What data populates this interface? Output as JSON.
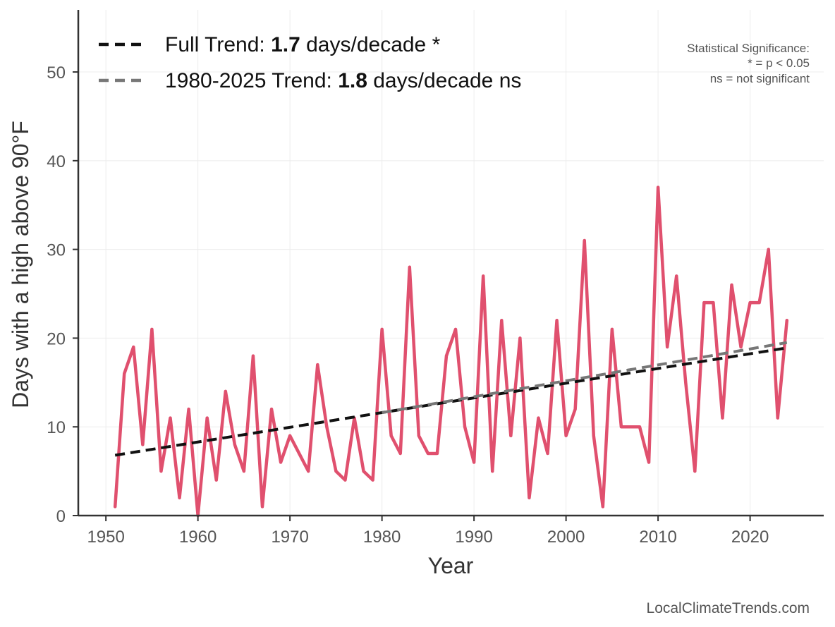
{
  "chart_data": {
    "type": "line",
    "xlabel": "Year",
    "ylabel": "Days with a high above 90°F",
    "xlim": [
      1947,
      2028
    ],
    "ylim": [
      0,
      57
    ],
    "xticks": [
      1950,
      1960,
      1970,
      1980,
      1990,
      2000,
      2010,
      2020
    ],
    "yticks": [
      0,
      10,
      20,
      30,
      40,
      50
    ],
    "grid": true,
    "legend_placement": "top-left",
    "colors": {
      "series": "#e0506e",
      "full_trend": "#111111",
      "recent_trend": "#777777"
    },
    "series": [
      {
        "x": [
          1951,
          1952,
          1953,
          1954,
          1955,
          1956,
          1957,
          1958,
          1959,
          1960,
          1961,
          1962,
          1963,
          1964,
          1965,
          1966,
          1967,
          1968,
          1969,
          1970,
          1971,
          1972,
          1973,
          1974,
          1975,
          1976,
          1977,
          1978,
          1979,
          1980,
          1981,
          1982,
          1983,
          1984,
          1985,
          1986,
          1987,
          1988,
          1989,
          1990,
          1991,
          1992,
          1993,
          1994,
          1995,
          1996,
          1997,
          1998,
          1999,
          2000,
          2001,
          2002,
          2003,
          2004,
          2005,
          2006,
          2007,
          2008,
          2009,
          2010,
          2011,
          2012,
          2013,
          2014,
          2015,
          2016,
          2017,
          2018,
          2019,
          2020,
          2021,
          2022,
          2023,
          2024
        ],
        "values": [
          1,
          16,
          19,
          8,
          21,
          5,
          11,
          2,
          12,
          0,
          11,
          4,
          14,
          8,
          5,
          18,
          1,
          12,
          6,
          9,
          7,
          5,
          17,
          10,
          5,
          4,
          11,
          5,
          4,
          21,
          9,
          7,
          28,
          9,
          7,
          7,
          18,
          21,
          10,
          6,
          27,
          5,
          22,
          9,
          20,
          2,
          11,
          7,
          22,
          9,
          12,
          31,
          9,
          1,
          21,
          10,
          10,
          10,
          6,
          37,
          19,
          27,
          15,
          5,
          24,
          24,
          11,
          26,
          19,
          24,
          24,
          30,
          11,
          22
        ]
      }
    ],
    "trends": [
      {
        "label_prefix": "Full Trend: ",
        "label_value": "1.7",
        "label_suffix": " days/decade *",
        "x": [
          1951,
          2024
        ],
        "y": [
          6.8,
          18.9
        ]
      },
      {
        "label_prefix": "1980-2025 Trend: ",
        "label_value": "1.8",
        "label_suffix": " days/decade ns",
        "x": [
          1980,
          2024
        ],
        "y": [
          11.6,
          19.5
        ]
      }
    ],
    "annotation": {
      "line1": "Statistical Significance:",
      "line2": "* = p < 0.05",
      "line3": "ns = not significant"
    },
    "credit": "LocalClimateTrends.com"
  }
}
